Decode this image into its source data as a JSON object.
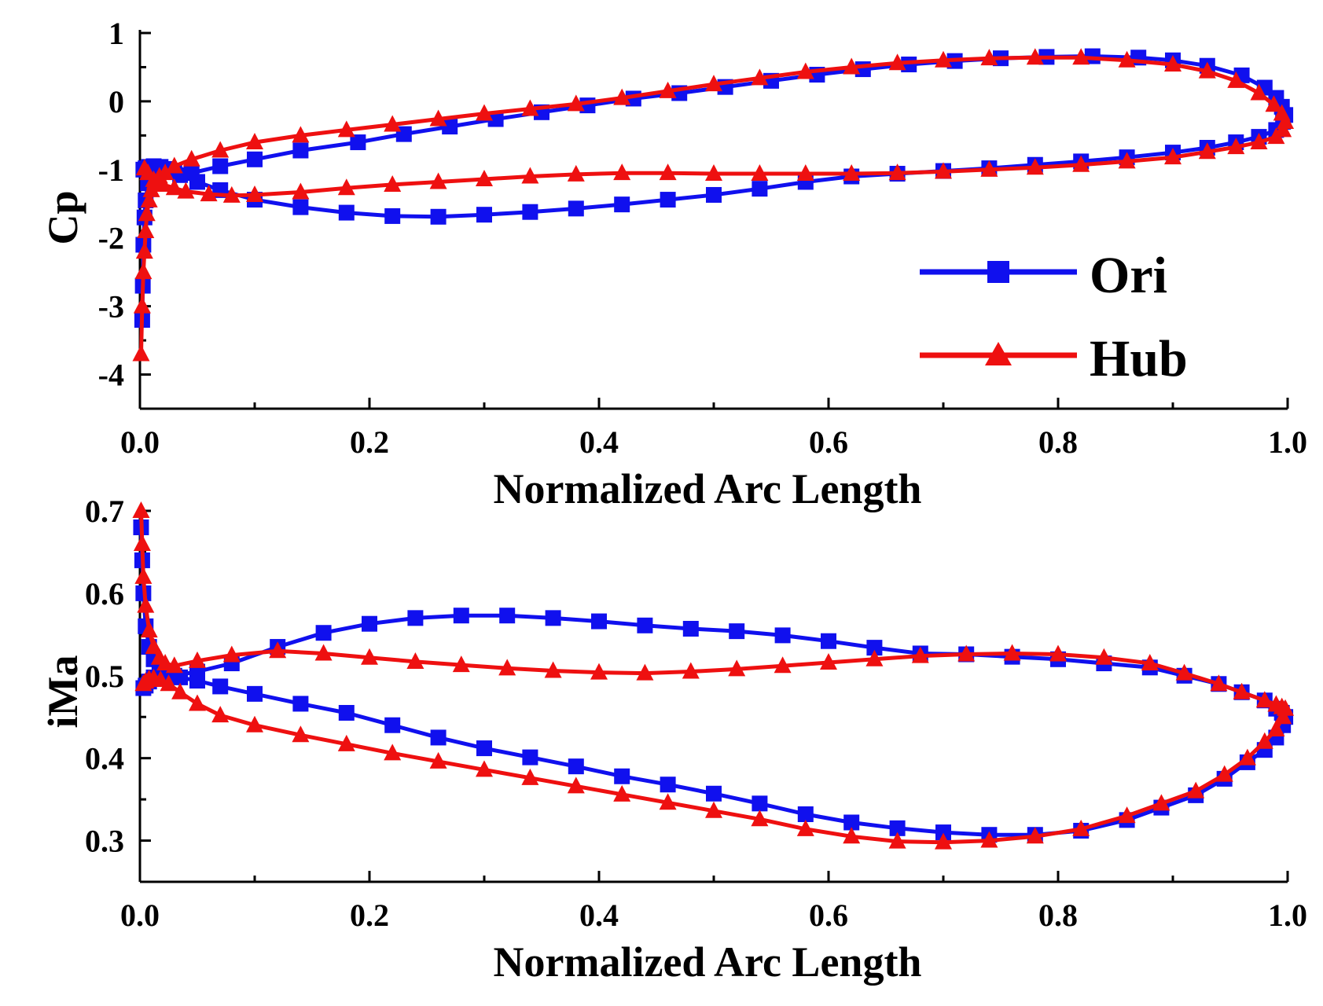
{
  "colors": {
    "ori": "#1010ee",
    "hub": "#ee1010",
    "axis": "#000000"
  },
  "legend": {
    "entries": [
      {
        "label": "Ori",
        "marker": "square"
      },
      {
        "label": "Hub",
        "marker": "triangle"
      }
    ]
  },
  "chart_data": [
    {
      "type": "line",
      "title": "",
      "xlabel": "Normalized Arc Length",
      "ylabel": "Cp",
      "xlim": [
        0,
        1
      ],
      "ylim": [
        -4.5,
        1
      ],
      "xticks": [
        "0.0",
        "0.2",
        "0.4",
        "0.6",
        "0.8",
        "1.0"
      ],
      "yticks": [
        "1",
        "0",
        "-1",
        "-2",
        "-3",
        "-4"
      ],
      "legend_position": "bottom-right",
      "series": [
        {
          "name": "Ori",
          "marker": "square",
          "x": [
            0.002,
            0.0025,
            0.003,
            0.004,
            0.005,
            0.007,
            0.01,
            0.013,
            0.017,
            0.022,
            0.03,
            0.045,
            0.07,
            0.1,
            0.14,
            0.19,
            0.23,
            0.27,
            0.31,
            0.35,
            0.39,
            0.43,
            0.47,
            0.51,
            0.55,
            0.59,
            0.63,
            0.67,
            0.71,
            0.75,
            0.79,
            0.83,
            0.87,
            0.9,
            0.93,
            0.96,
            0.98,
            0.99,
            0.995,
            0.998,
            0.996,
            0.99,
            0.975,
            0.955,
            0.93,
            0.9,
            0.86,
            0.82,
            0.78,
            0.74,
            0.7,
            0.66,
            0.62,
            0.58,
            0.54,
            0.5,
            0.46,
            0.42,
            0.38,
            0.34,
            0.3,
            0.26,
            0.22,
            0.18,
            0.14,
            0.1,
            0.07,
            0.05,
            0.035,
            0.025,
            0.018,
            0.012,
            0.008,
            0.005,
            0.003
          ],
          "y": [
            -3.2,
            -2.7,
            -2.1,
            -1.7,
            -1.45,
            -1.2,
            -1.05,
            -1.0,
            -0.98,
            -0.99,
            -1.02,
            -1.05,
            -0.95,
            -0.85,
            -0.72,
            -0.6,
            -0.48,
            -0.37,
            -0.26,
            -0.16,
            -0.06,
            0.04,
            0.12,
            0.21,
            0.3,
            0.39,
            0.47,
            0.54,
            0.59,
            0.63,
            0.65,
            0.66,
            0.64,
            0.6,
            0.52,
            0.38,
            0.2,
            0.05,
            -0.08,
            -0.2,
            -0.3,
            -0.42,
            -0.52,
            -0.6,
            -0.68,
            -0.75,
            -0.82,
            -0.88,
            -0.93,
            -0.98,
            -1.02,
            -1.06,
            -1.1,
            -1.18,
            -1.28,
            -1.37,
            -1.44,
            -1.51,
            -1.57,
            -1.62,
            -1.66,
            -1.69,
            -1.68,
            -1.63,
            -1.55,
            -1.44,
            -1.3,
            -1.18,
            -1.08,
            -1.0,
            -0.96,
            -0.95,
            -0.96,
            -0.98,
            -1.0
          ]
        },
        {
          "name": "Hub",
          "marker": "triangle",
          "x": [
            0.001,
            0.002,
            0.003,
            0.004,
            0.005,
            0.006,
            0.008,
            0.01,
            0.013,
            0.017,
            0.022,
            0.03,
            0.045,
            0.07,
            0.1,
            0.14,
            0.18,
            0.22,
            0.26,
            0.3,
            0.34,
            0.38,
            0.42,
            0.46,
            0.5,
            0.54,
            0.58,
            0.62,
            0.66,
            0.7,
            0.74,
            0.78,
            0.82,
            0.86,
            0.9,
            0.93,
            0.955,
            0.975,
            0.988,
            0.995,
            0.998,
            0.996,
            0.99,
            0.975,
            0.955,
            0.93,
            0.9,
            0.86,
            0.82,
            0.78,
            0.74,
            0.7,
            0.66,
            0.62,
            0.58,
            0.54,
            0.5,
            0.46,
            0.42,
            0.38,
            0.34,
            0.3,
            0.26,
            0.22,
            0.18,
            0.14,
            0.1,
            0.08,
            0.06,
            0.04,
            0.03,
            0.02,
            0.012,
            0.007,
            0.004
          ],
          "y": [
            -3.7,
            -3.0,
            -2.5,
            -2.2,
            -1.9,
            -1.65,
            -1.45,
            -1.3,
            -1.18,
            -1.1,
            -1.05,
            -0.95,
            -0.85,
            -0.72,
            -0.6,
            -0.5,
            -0.42,
            -0.34,
            -0.26,
            -0.18,
            -0.11,
            -0.04,
            0.05,
            0.15,
            0.25,
            0.34,
            0.43,
            0.5,
            0.56,
            0.6,
            0.63,
            0.64,
            0.64,
            0.6,
            0.54,
            0.44,
            0.3,
            0.12,
            -0.05,
            -0.18,
            -0.3,
            -0.42,
            -0.52,
            -0.6,
            -0.67,
            -0.74,
            -0.82,
            -0.88,
            -0.93,
            -0.97,
            -1.0,
            -1.03,
            -1.05,
            -1.06,
            -1.06,
            -1.06,
            -1.06,
            -1.05,
            -1.05,
            -1.07,
            -1.1,
            -1.14,
            -1.18,
            -1.22,
            -1.27,
            -1.33,
            -1.37,
            -1.38,
            -1.36,
            -1.32,
            -1.27,
            -1.22,
            -1.15,
            -1.05,
            -0.98
          ]
        }
      ]
    },
    {
      "type": "line",
      "title": "",
      "xlabel": "Normalized Arc Length",
      "ylabel": "iMa",
      "xlim": [
        0,
        1
      ],
      "ylim": [
        0.25,
        0.7
      ],
      "xticks": [
        "0.0",
        "0.2",
        "0.4",
        "0.6",
        "0.8",
        "1.0"
      ],
      "yticks": [
        "0.7",
        "0.6",
        "0.5",
        "0.4",
        "0.3"
      ],
      "series": [
        {
          "name": "Ori",
          "marker": "square",
          "x": [
            0.001,
            0.002,
            0.003,
            0.005,
            0.008,
            0.012,
            0.017,
            0.022,
            0.03,
            0.05,
            0.08,
            0.12,
            0.16,
            0.2,
            0.24,
            0.28,
            0.32,
            0.36,
            0.4,
            0.44,
            0.48,
            0.52,
            0.56,
            0.6,
            0.64,
            0.68,
            0.72,
            0.76,
            0.8,
            0.84,
            0.88,
            0.91,
            0.94,
            0.96,
            0.98,
            0.99,
            0.995,
            0.998,
            0.996,
            0.99,
            0.98,
            0.965,
            0.945,
            0.92,
            0.89,
            0.86,
            0.82,
            0.78,
            0.74,
            0.7,
            0.66,
            0.62,
            0.58,
            0.54,
            0.5,
            0.46,
            0.42,
            0.38,
            0.34,
            0.3,
            0.26,
            0.22,
            0.18,
            0.14,
            0.1,
            0.07,
            0.05,
            0.035,
            0.025,
            0.018,
            0.012,
            0.008,
            0.005,
            0.003
          ],
          "y": [
            0.68,
            0.64,
            0.6,
            0.56,
            0.535,
            0.52,
            0.51,
            0.505,
            0.5,
            0.505,
            0.515,
            0.535,
            0.552,
            0.563,
            0.57,
            0.573,
            0.573,
            0.57,
            0.566,
            0.561,
            0.557,
            0.554,
            0.549,
            0.542,
            0.534,
            0.527,
            0.526,
            0.523,
            0.52,
            0.515,
            0.51,
            0.5,
            0.49,
            0.48,
            0.47,
            0.46,
            0.455,
            0.45,
            0.44,
            0.425,
            0.41,
            0.395,
            0.375,
            0.355,
            0.34,
            0.325,
            0.312,
            0.307,
            0.307,
            0.31,
            0.315,
            0.322,
            0.332,
            0.345,
            0.357,
            0.368,
            0.378,
            0.39,
            0.401,
            0.412,
            0.425,
            0.44,
            0.455,
            0.466,
            0.478,
            0.487,
            0.494,
            0.498,
            0.5,
            0.5,
            0.498,
            0.493,
            0.488,
            0.485
          ]
        },
        {
          "name": "Hub",
          "marker": "triangle",
          "x": [
            0.001,
            0.002,
            0.003,
            0.005,
            0.008,
            0.012,
            0.017,
            0.022,
            0.03,
            0.05,
            0.08,
            0.12,
            0.16,
            0.2,
            0.24,
            0.28,
            0.32,
            0.36,
            0.4,
            0.44,
            0.48,
            0.52,
            0.56,
            0.6,
            0.64,
            0.68,
            0.72,
            0.76,
            0.8,
            0.84,
            0.88,
            0.91,
            0.94,
            0.96,
            0.98,
            0.99,
            0.995,
            0.998,
            0.996,
            0.99,
            0.98,
            0.965,
            0.945,
            0.92,
            0.89,
            0.86,
            0.82,
            0.78,
            0.74,
            0.7,
            0.66,
            0.62,
            0.58,
            0.54,
            0.5,
            0.46,
            0.42,
            0.38,
            0.34,
            0.3,
            0.26,
            0.22,
            0.18,
            0.14,
            0.1,
            0.07,
            0.05,
            0.035,
            0.025,
            0.018,
            0.012,
            0.008,
            0.005,
            0.003
          ],
          "y": [
            0.7,
            0.66,
            0.62,
            0.585,
            0.555,
            0.535,
            0.522,
            0.515,
            0.512,
            0.518,
            0.525,
            0.53,
            0.527,
            0.522,
            0.517,
            0.513,
            0.509,
            0.506,
            0.504,
            0.503,
            0.505,
            0.508,
            0.512,
            0.516,
            0.52,
            0.524,
            0.526,
            0.527,
            0.526,
            0.522,
            0.515,
            0.503,
            0.49,
            0.48,
            0.47,
            0.465,
            0.462,
            0.46,
            0.45,
            0.435,
            0.42,
            0.4,
            0.38,
            0.36,
            0.345,
            0.33,
            0.314,
            0.305,
            0.3,
            0.298,
            0.299,
            0.305,
            0.314,
            0.326,
            0.336,
            0.346,
            0.356,
            0.366,
            0.376,
            0.386,
            0.396,
            0.406,
            0.417,
            0.428,
            0.44,
            0.452,
            0.466,
            0.48,
            0.49,
            0.495,
            0.497,
            0.496,
            0.493,
            0.49
          ]
        }
      ]
    }
  ]
}
